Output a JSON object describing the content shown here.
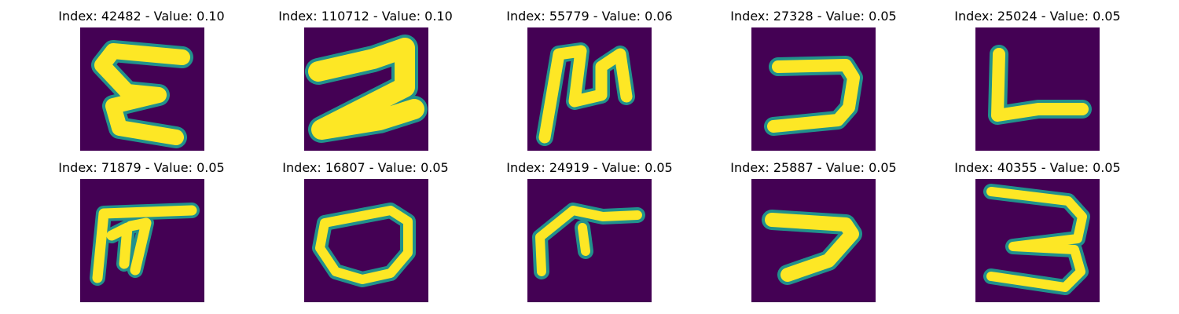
{
  "colormap": {
    "background": "#440154",
    "edge": "#21918c",
    "mid": "#5ec962",
    "stroke": "#fde725"
  },
  "panels": [
    {
      "title": "Index: 42482 - Value: 0.10",
      "glyph_icon": "handwritten-glyph-icon"
    },
    {
      "title": "Index: 110712 - Value: 0.10",
      "glyph_icon": "handwritten-glyph-icon"
    },
    {
      "title": "Index: 55779 - Value: 0.06",
      "glyph_icon": "handwritten-glyph-icon"
    },
    {
      "title": "Index: 27328 - Value: 0.05",
      "glyph_icon": "handwritten-glyph-icon"
    },
    {
      "title": "Index: 25024 - Value: 0.05",
      "glyph_icon": "handwritten-glyph-icon"
    },
    {
      "title": "Index: 71879 - Value: 0.05",
      "glyph_icon": "handwritten-glyph-icon"
    },
    {
      "title": "Index: 16807 - Value: 0.05",
      "glyph_icon": "handwritten-glyph-icon"
    },
    {
      "title": "Index: 24919 - Value: 0.05",
      "glyph_icon": "handwritten-glyph-icon"
    },
    {
      "title": "Index: 25887 - Value: 0.05",
      "glyph_icon": "handwritten-glyph-icon"
    },
    {
      "title": "Index: 40355 - Value: 0.05",
      "glyph_icon": "handwritten-glyph-icon"
    }
  ]
}
